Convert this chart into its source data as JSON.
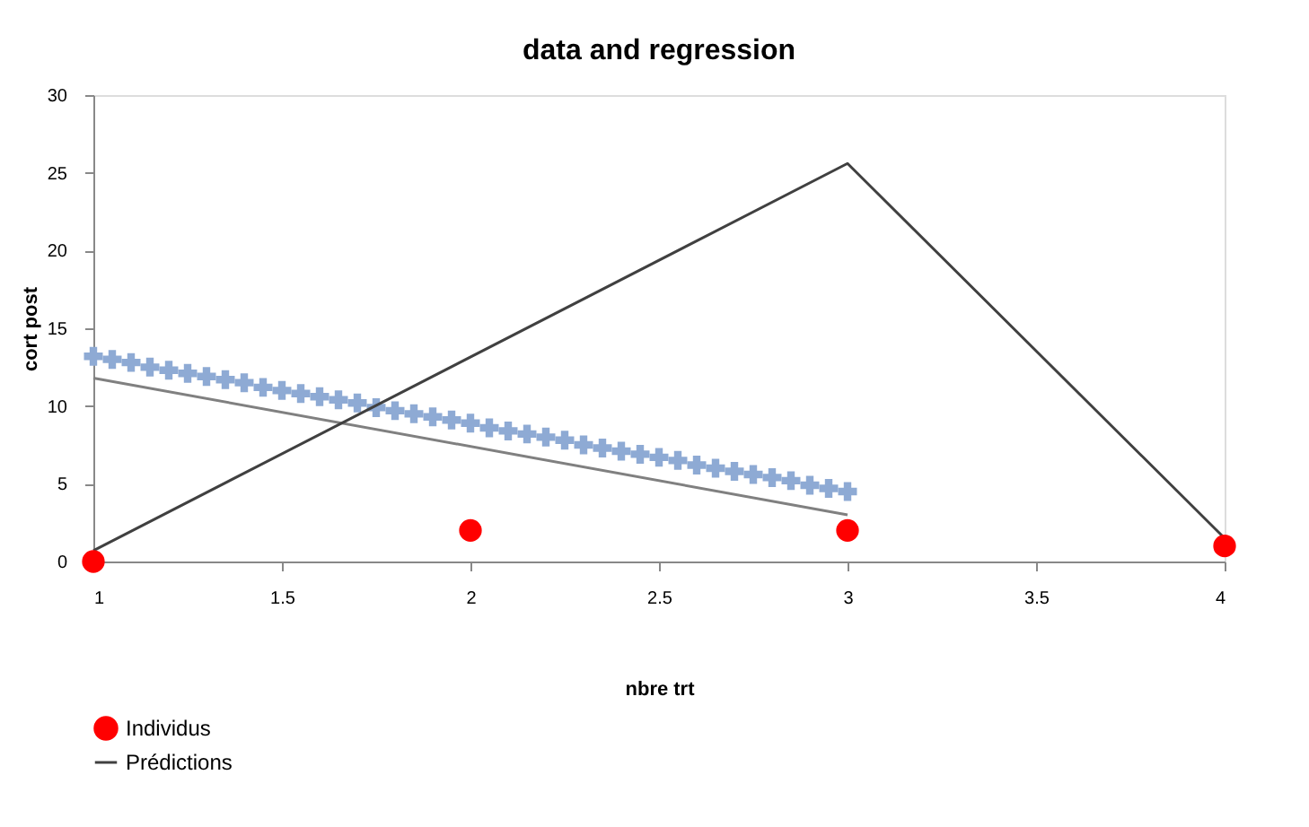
{
  "chart_data": {
    "type": "scatter",
    "title": "data and regression",
    "xlabel": "nbre trt",
    "ylabel": "cort post",
    "xlim": [
      1,
      4
    ],
    "xticks": [
      1,
      1.5,
      2,
      2.5,
      3,
      3.5,
      4
    ],
    "ylim": [
      0,
      30
    ],
    "yticks": [
      0,
      5,
      10,
      15,
      20,
      25,
      30
    ],
    "grid": false,
    "legend": "bottom",
    "series": [
      {
        "marker": "cross",
        "color": "#8eaad4",
        "x": [
          1.0,
          1.05,
          1.1,
          1.15,
          1.2,
          1.25,
          1.3,
          1.35,
          1.4,
          1.45,
          1.5,
          1.55,
          1.6,
          1.65,
          1.7,
          1.75,
          1.8,
          1.85,
          1.9,
          1.95,
          2.0,
          2.05,
          2.1,
          2.15,
          2.2,
          2.25,
          2.3,
          2.35,
          2.4,
          2.45,
          2.5,
          2.55,
          2.6,
          2.65,
          2.7,
          2.75,
          2.8,
          2.85,
          2.9,
          2.95,
          3.0
        ],
        "values": [
          13.2,
          13.0,
          12.8,
          12.5,
          12.3,
          12.1,
          11.9,
          11.7,
          11.5,
          11.2,
          11.0,
          10.8,
          10.6,
          10.4,
          10.2,
          9.9,
          9.7,
          9.5,
          9.3,
          9.1,
          8.9,
          8.6,
          8.4,
          8.2,
          8.0,
          7.8,
          7.5,
          7.3,
          7.1,
          6.9,
          6.7,
          6.5,
          6.2,
          6.0,
          5.8,
          5.6,
          5.4,
          5.2,
          4.9,
          4.7,
          4.5
        ]
      },
      {
        "type": "line",
        "color": "#808080",
        "x": [
          1,
          3
        ],
        "values": [
          11.8,
          3.0
        ]
      },
      {
        "type": "line",
        "name": "Prédictions",
        "color": "#404040",
        "x": [
          1,
          3,
          4
        ],
        "values": [
          0.7,
          25.6,
          1.5
        ]
      },
      {
        "name": "Individus",
        "marker": "circle",
        "color": "#ff0000",
        "x": [
          1,
          2,
          3,
          4
        ],
        "values": [
          0,
          2,
          2,
          1
        ]
      }
    ]
  }
}
